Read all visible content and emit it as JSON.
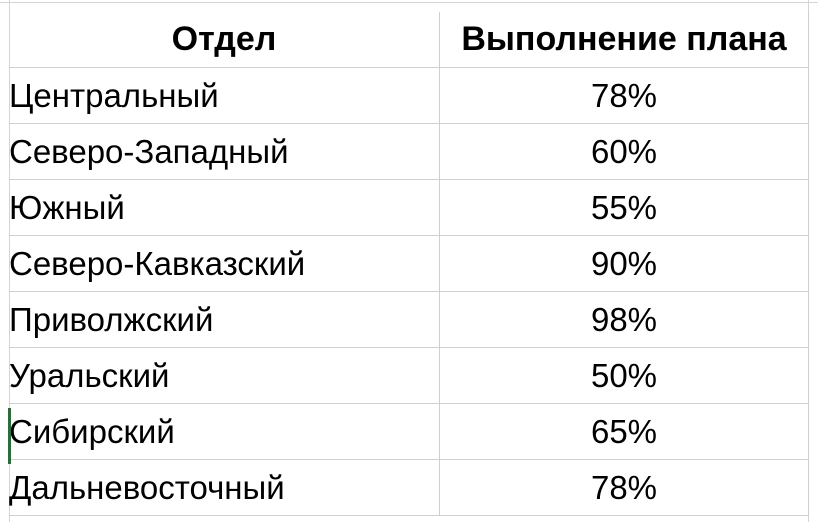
{
  "table": {
    "headers": {
      "department": "Отдел",
      "plan": "Выполнение плана"
    },
    "rows": [
      {
        "department": "Центральный",
        "plan": "78%"
      },
      {
        "department": "Северо-Западный",
        "plan": "60%"
      },
      {
        "department": "Южный",
        "plan": "55%"
      },
      {
        "department": "Северо-Кавказский",
        "plan": "90%"
      },
      {
        "department": "Приволжский",
        "plan": "98%"
      },
      {
        "department": "Уральский",
        "plan": "50%"
      },
      {
        "department": "Сибирский",
        "plan": "65%"
      },
      {
        "department": "Дальневосточный",
        "plan": "78%"
      }
    ]
  },
  "colors": {
    "gridline": "#cfcfcf",
    "active_cell_marker": "#2e6b3a",
    "text": "#000000"
  }
}
